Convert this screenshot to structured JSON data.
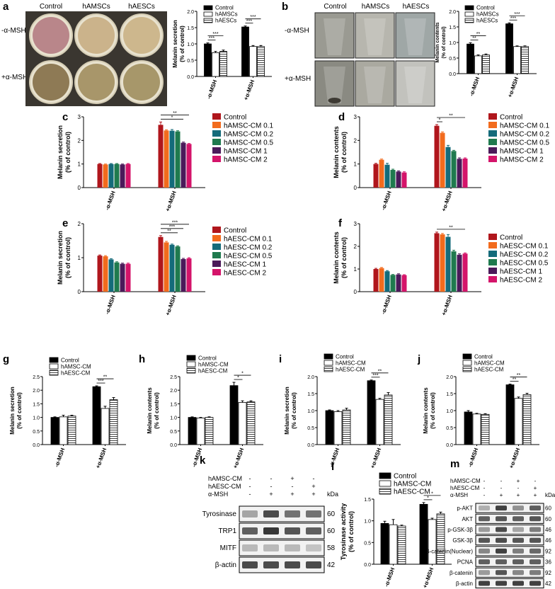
{
  "figure": {
    "panels": [
      "a",
      "b",
      "c",
      "d",
      "e",
      "f",
      "g",
      "h",
      "i",
      "j",
      "k",
      "l",
      "m"
    ]
  },
  "photo_a": {
    "cols": [
      "Control",
      "hAMSCs",
      "hAESCs"
    ],
    "rows": [
      "-α-MSH",
      "+α-MSH"
    ],
    "colors": [
      [
        "#b9868a",
        "#cbb38b",
        "#cdb78d"
      ],
      [
        "#8e7a55",
        "#a8966a",
        "#a7976a"
      ]
    ]
  },
  "photo_b": {
    "cols": [
      "Control",
      "hAMSCs",
      "hAESCs"
    ],
    "rows": [
      "-α-MSH",
      "+α-MSH"
    ]
  },
  "common": {
    "x_neg": "-α-MSH",
    "x_pos": "+α-MSH",
    "ylabel_secretion": "Melanin secretion",
    "ylabel_contents": "Melanin contents",
    "ylabel_unit": "(% of control)",
    "ylabel_tyr": "Tyrosinase activity",
    "ylabel_tyr_unit": "(% of control)"
  },
  "legends": {
    "cells": [
      "Control",
      "hAMSCs",
      "hAESCs"
    ],
    "amsc_doses": [
      "Control",
      "hAMSC-CM 0.1",
      "hAMSC-CM 0.2",
      "hAMSC-CM 0.5",
      "hAMSC-CM 1",
      "hAMSC-CM 2"
    ],
    "aesc_doses": [
      "Control",
      "hAESC-CM 0.1",
      "hAESC-CM 0.2",
      "hAESC-CM 0.5",
      "hAESC-CM 1",
      "hAESC-CM 2"
    ],
    "cm": [
      "Control",
      "hAMSC-CM",
      "hAESC-CM"
    ]
  },
  "dose_colors": [
    "#b0161c",
    "#f26b1d",
    "#146b7a",
    "#1f7a4e",
    "#4b1a5a",
    "#d4146a"
  ],
  "chart_data": [
    {
      "panel": "a",
      "type": "bar",
      "title": "",
      "ylabel": "Melanin secretion (% of control)",
      "categories": [
        "-α-MSH",
        "+α-MSH"
      ],
      "ylim": [
        0,
        2.0
      ],
      "yticks": [
        "0.0",
        "0.5",
        "1.0",
        "1.5",
        "2.0"
      ],
      "series": [
        {
          "name": "Control",
          "values": [
            1.0,
            1.52
          ]
        },
        {
          "name": "hAMSCs",
          "values": [
            0.73,
            0.92
          ]
        },
        {
          "name": "hAESCs",
          "values": [
            0.77,
            0.92
          ]
        }
      ],
      "errors": [
        [
          0.03,
          0.03
        ],
        [
          0.04,
          0.03
        ],
        [
          0.04,
          0.03
        ]
      ],
      "sig": [
        {
          "g": 0,
          "a": 0,
          "b": 1,
          "t": "***"
        },
        {
          "g": 0,
          "a": 0,
          "b": 2,
          "t": "***"
        },
        {
          "g": 1,
          "a": 0,
          "b": 1,
          "t": "***"
        },
        {
          "g": 1,
          "a": 0,
          "b": 2,
          "t": "***"
        }
      ]
    },
    {
      "panel": "b",
      "type": "bar",
      "title": "",
      "ylabel": "Melanin contents (% of control)",
      "categories": [
        "-α-MSH",
        "+α-MSH"
      ],
      "ylim": [
        0,
        2.0
      ],
      "yticks": [
        "0.0",
        "0.5",
        "1.0",
        "1.5",
        "2.0"
      ],
      "series": [
        {
          "name": "Control",
          "values": [
            0.95,
            1.6
          ]
        },
        {
          "name": "hAMSCs",
          "values": [
            0.57,
            0.87
          ]
        },
        {
          "name": "hAESCs",
          "values": [
            0.6,
            0.87
          ]
        }
      ],
      "errors": [
        [
          0.04,
          0.03
        ],
        [
          0.03,
          0.02
        ],
        [
          0.03,
          0.02
        ]
      ],
      "sig": [
        {
          "g": 0,
          "a": 0,
          "b": 1,
          "t": "**"
        },
        {
          "g": 0,
          "a": 0,
          "b": 2,
          "t": "**"
        },
        {
          "g": 1,
          "a": 0,
          "b": 1,
          "t": "***"
        },
        {
          "g": 1,
          "a": 0,
          "b": 2,
          "t": "***"
        }
      ]
    },
    {
      "panel": "c",
      "type": "bar",
      "title": "",
      "ylabel": "Melanin secretion (% of control)",
      "categories": [
        "-α-MSH",
        "+α-MSH"
      ],
      "ylim": [
        0,
        3
      ],
      "yticks": [
        "0",
        "1",
        "2",
        "3"
      ],
      "series": [
        {
          "name": "Control",
          "values": [
            1.0,
            2.66
          ]
        },
        {
          "name": "hAMSC-CM 0.1",
          "values": [
            0.98,
            2.42
          ]
        },
        {
          "name": "hAMSC-CM 0.2",
          "values": [
            1.0,
            2.41
          ]
        },
        {
          "name": "hAMSC-CM 0.5",
          "values": [
            1.0,
            2.38
          ]
        },
        {
          "name": "hAMSC-CM 1",
          "values": [
            0.98,
            1.9
          ]
        },
        {
          "name": "hAMSC-CM 2",
          "values": [
            1.0,
            1.85
          ]
        }
      ],
      "errors": [
        [
          0.02,
          0.12
        ],
        [
          0.02,
          0.03
        ],
        [
          0.02,
          0.05
        ],
        [
          0.02,
          0.03
        ],
        [
          0.02,
          0.03
        ],
        [
          0.02,
          0.02
        ]
      ],
      "sig": [
        {
          "g": 1,
          "a": 0,
          "b": 4,
          "t": "*"
        },
        {
          "g": 1,
          "a": 0,
          "b": 5,
          "t": "**"
        }
      ]
    },
    {
      "panel": "d",
      "type": "bar",
      "title": "",
      "ylabel": "Melanin contents (% of control)",
      "categories": [
        "-α-MSH",
        "+α-MSH"
      ],
      "ylim": [
        0,
        3
      ],
      "yticks": [
        "0",
        "1",
        "2",
        "3"
      ],
      "series": [
        {
          "name": "Control",
          "values": [
            1.0,
            2.62
          ]
        },
        {
          "name": "hAMSC-CM 0.1",
          "values": [
            1.18,
            2.32
          ]
        },
        {
          "name": "hAMSC-CM 0.2",
          "values": [
            0.97,
            1.72
          ]
        },
        {
          "name": "hAMSC-CM 0.5",
          "values": [
            0.75,
            1.55
          ]
        },
        {
          "name": "hAMSC-CM 1",
          "values": [
            0.68,
            1.22
          ]
        },
        {
          "name": "hAMSC-CM 2",
          "values": [
            0.64,
            1.23
          ]
        }
      ],
      "errors": [
        [
          0.03,
          0.05
        ],
        [
          0.03,
          0.04
        ],
        [
          0.06,
          0.07
        ],
        [
          0.03,
          0.03
        ],
        [
          0.03,
          0.04
        ],
        [
          0.03,
          0.03
        ]
      ],
      "sig": [
        {
          "g": 1,
          "a": 0,
          "b": 1,
          "t": "*"
        },
        {
          "g": 1,
          "a": 0,
          "b": 5,
          "t": "**"
        }
      ]
    },
    {
      "panel": "e",
      "type": "bar",
      "title": "",
      "ylabel": "Melanin secretion (% of control)",
      "categories": [
        "-α-MSH",
        "+α-MSH"
      ],
      "ylim": [
        0,
        2
      ],
      "yticks": [
        "0",
        "1",
        "2"
      ],
      "series": [
        {
          "name": "Control",
          "values": [
            1.06,
            1.61
          ]
        },
        {
          "name": "hAESC-CM 0.1",
          "values": [
            1.04,
            1.45
          ]
        },
        {
          "name": "hAESC-CM 0.2",
          "values": [
            0.95,
            1.38
          ]
        },
        {
          "name": "hAESC-CM 0.5",
          "values": [
            0.86,
            1.33
          ]
        },
        {
          "name": "hAESC-CM 1",
          "values": [
            0.82,
            0.96
          ]
        },
        {
          "name": "hAESC-CM 2",
          "values": [
            0.82,
            0.98
          ]
        }
      ],
      "errors": [
        [
          0.02,
          0.04
        ],
        [
          0.02,
          0.03
        ],
        [
          0.02,
          0.02
        ],
        [
          0.02,
          0.02
        ],
        [
          0.02,
          0.02
        ],
        [
          0.02,
          0.02
        ]
      ],
      "sig": [
        {
          "g": 1,
          "a": 0,
          "b": 3,
          "t": "**"
        },
        {
          "g": 1,
          "a": 0,
          "b": 4,
          "t": "***"
        },
        {
          "g": 1,
          "a": 0,
          "b": 5,
          "t": "***"
        }
      ]
    },
    {
      "panel": "f",
      "type": "bar",
      "title": "",
      "ylabel": "Melanin contents (% of control)",
      "categories": [
        "-α-MSH",
        "+α-MSH"
      ],
      "ylim": [
        0,
        3
      ],
      "yticks": [
        "0",
        "1",
        "2",
        "3"
      ],
      "series": [
        {
          "name": "Control",
          "values": [
            1.0,
            2.58
          ]
        },
        {
          "name": "hAESC-CM 0.1",
          "values": [
            1.04,
            2.53
          ]
        },
        {
          "name": "hAESC-CM 0.2",
          "values": [
            0.9,
            2.42
          ]
        },
        {
          "name": "hAESC-CM 0.5",
          "values": [
            0.74,
            1.78
          ]
        },
        {
          "name": "hAESC-CM 1",
          "values": [
            0.76,
            1.63
          ]
        },
        {
          "name": "hAESC-CM 2",
          "values": [
            0.73,
            1.68
          ]
        }
      ],
      "errors": [
        [
          0.03,
          0.05
        ],
        [
          0.03,
          0.04
        ],
        [
          0.03,
          0.1
        ],
        [
          0.02,
          0.05
        ],
        [
          0.03,
          0.04
        ],
        [
          0.02,
          0.03
        ]
      ],
      "sig": [
        {
          "g": 1,
          "a": 0,
          "b": 5,
          "t": "**"
        }
      ]
    },
    {
      "panel": "g",
      "type": "bar",
      "title": "",
      "ylabel": "Melanin secretion (% of control)",
      "categories": [
        "-α-MSH",
        "+α-MSH"
      ],
      "ylim": [
        0,
        2.5
      ],
      "yticks": [
        "0.0",
        "0.5",
        "1.0",
        "1.5",
        "2.0",
        "2.5"
      ],
      "series": [
        {
          "name": "Control",
          "values": [
            1.0,
            2.13
          ]
        },
        {
          "name": "hAMSC-CM",
          "values": [
            1.02,
            1.33
          ]
        },
        {
          "name": "hAESC-CM",
          "values": [
            1.05,
            1.65
          ]
        }
      ],
      "errors": [
        [
          0.02,
          0.03
        ],
        [
          0.06,
          0.08
        ],
        [
          0.03,
          0.08
        ]
      ],
      "sig": [
        {
          "g": 1,
          "a": 0,
          "b": 1,
          "t": "***"
        },
        {
          "g": 1,
          "a": 0,
          "b": 2,
          "t": "**"
        }
      ]
    },
    {
      "panel": "h",
      "type": "bar",
      "title": "",
      "ylabel": "Melanin contents (% of control)",
      "categories": [
        "-α-MSH",
        "+α-MSH"
      ],
      "ylim": [
        0,
        2.5
      ],
      "yticks": [
        "0.0",
        "0.5",
        "1.0",
        "1.5",
        "2.0",
        "2.5"
      ],
      "series": [
        {
          "name": "Control",
          "values": [
            1.0,
            2.17
          ]
        },
        {
          "name": "hAMSC-CM",
          "values": [
            0.98,
            1.55
          ]
        },
        {
          "name": "hAESC-CM",
          "values": [
            1.0,
            1.57
          ]
        }
      ],
      "errors": [
        [
          0.02,
          0.12
        ],
        [
          0.02,
          0.06
        ],
        [
          0.02,
          0.04
        ]
      ],
      "sig": [
        {
          "g": 1,
          "a": 0,
          "b": 1,
          "t": "*"
        },
        {
          "g": 1,
          "a": 0,
          "b": 2,
          "t": "*"
        }
      ]
    },
    {
      "panel": "i",
      "type": "bar",
      "title": "",
      "ylabel": "Melanin secretion (% of control)",
      "categories": [
        "-α-MSH",
        "+α-MSH"
      ],
      "ylim": [
        0,
        2.0
      ],
      "yticks": [
        "0.0",
        "0.5",
        "1.0",
        "1.5",
        "2.0"
      ],
      "series": [
        {
          "name": "Control",
          "values": [
            1.0,
            1.88
          ]
        },
        {
          "name": "hAMSC-CM",
          "values": [
            0.97,
            1.33
          ]
        },
        {
          "name": "hAESC-CM",
          "values": [
            1.02,
            1.46
          ]
        }
      ],
      "errors": [
        [
          0.02,
          0.02
        ],
        [
          0.03,
          0.03
        ],
        [
          0.05,
          0.07
        ]
      ],
      "sig": [
        {
          "g": 1,
          "a": 0,
          "b": 1,
          "t": "***"
        },
        {
          "g": 1,
          "a": 0,
          "b": 2,
          "t": "**"
        }
      ]
    },
    {
      "panel": "j",
      "type": "bar",
      "title": "",
      "ylabel": "Melanin contents (% of control)",
      "categories": [
        "-α-MSH",
        "+α-MSH"
      ],
      "ylim": [
        0,
        2.0
      ],
      "yticks": [
        "0.0",
        "0.5",
        "1.0",
        "1.5",
        "2.0"
      ],
      "series": [
        {
          "name": "Control",
          "values": [
            0.96,
            1.76
          ]
        },
        {
          "name": "hAMSC-CM",
          "values": [
            0.9,
            1.36
          ]
        },
        {
          "name": "hAESC-CM",
          "values": [
            0.89,
            1.47
          ]
        }
      ],
      "errors": [
        [
          0.04,
          0.02
        ],
        [
          0.02,
          0.04
        ],
        [
          0.02,
          0.04
        ]
      ],
      "sig": [
        {
          "g": 1,
          "a": 0,
          "b": 1,
          "t": "**"
        },
        {
          "g": 1,
          "a": 0,
          "b": 2,
          "t": "**"
        }
      ]
    },
    {
      "panel": "l",
      "type": "bar",
      "title": "",
      "ylabel": "Tyrosinase activity (% of control)",
      "categories": [
        "-α-MSH",
        "+α-MSH"
      ],
      "ylim": [
        0,
        1.5
      ],
      "yticks": [
        "0.0",
        "0.5",
        "1.0",
        "1.5"
      ],
      "series": [
        {
          "name": "Control",
          "values": [
            0.94,
            1.38
          ]
        },
        {
          "name": "hAMSC-CM",
          "values": [
            0.91,
            1.03
          ]
        },
        {
          "name": "hAESC-CM",
          "values": [
            0.88,
            1.16
          ]
        }
      ],
      "errors": [
        [
          0.05,
          0.04
        ],
        [
          0.12,
          0.03
        ],
        [
          0.02,
          0.04
        ]
      ],
      "sig": [
        {
          "g": 1,
          "a": 0,
          "b": 1,
          "t": "*"
        },
        {
          "g": 1,
          "a": 0,
          "b": 2,
          "t": "*"
        }
      ]
    }
  ],
  "blot_k": {
    "header_rows": [
      {
        "label": "hAMSC-CM",
        "marks": [
          "-",
          "-",
          "+",
          "-"
        ]
      },
      {
        "label": "hAESC-CM",
        "marks": [
          "-",
          "-",
          "-",
          "+"
        ]
      },
      {
        "label": "α-MSH",
        "marks": [
          "-",
          "+",
          "+",
          "+"
        ]
      }
    ],
    "kda_label": "kDa",
    "bands": [
      {
        "name": "Tyrosinase",
        "kda": "60",
        "intensity": [
          0.35,
          0.8,
          0.6,
          0.6
        ]
      },
      {
        "name": "TRP1",
        "kda": "60",
        "intensity": [
          0.7,
          0.9,
          0.75,
          0.7
        ]
      },
      {
        "name": "MITF",
        "kda": "58",
        "intensity": [
          0.25,
          0.25,
          0.25,
          0.2
        ]
      },
      {
        "name": "β-actin",
        "kda": "42",
        "intensity": [
          0.8,
          0.8,
          0.8,
          0.8
        ]
      }
    ]
  },
  "blot_m": {
    "header_rows": [
      {
        "label": "hAMSC-CM",
        "marks": [
          "-",
          "-",
          "+",
          "-"
        ]
      },
      {
        "label": "hAESC-CM",
        "marks": [
          "-",
          "-",
          "-",
          "+"
        ]
      },
      {
        "label": "α-MSH",
        "marks": [
          "-",
          "+",
          "+",
          "+"
        ]
      }
    ],
    "kda_label": "kDa",
    "bands": [
      {
        "name": "p-AKT",
        "kda": "60",
        "intensity": [
          0.3,
          0.85,
          0.45,
          0.7
        ]
      },
      {
        "name": "AKT",
        "kda": "60",
        "intensity": [
          0.7,
          0.75,
          0.7,
          0.75
        ]
      },
      {
        "name": "p-GSK-3β",
        "kda": "46",
        "intensity": [
          0.4,
          0.8,
          0.35,
          0.55
        ]
      },
      {
        "name": "GSK-3β",
        "kda": "46",
        "intensity": [
          0.75,
          0.8,
          0.75,
          0.75
        ]
      },
      {
        "name": "β-catenin(Nuclear)",
        "kda": "92",
        "intensity": [
          0.5,
          0.85,
          0.55,
          0.65
        ]
      },
      {
        "name": "PCNA",
        "kda": "36",
        "intensity": [
          0.7,
          0.7,
          0.7,
          0.7
        ]
      },
      {
        "name": "β-catenin",
        "kda": "92",
        "intensity": [
          0.4,
          0.75,
          0.5,
          0.55
        ]
      },
      {
        "name": "β-actin",
        "kda": "42",
        "intensity": [
          0.85,
          0.85,
          0.85,
          0.85
        ]
      }
    ]
  }
}
